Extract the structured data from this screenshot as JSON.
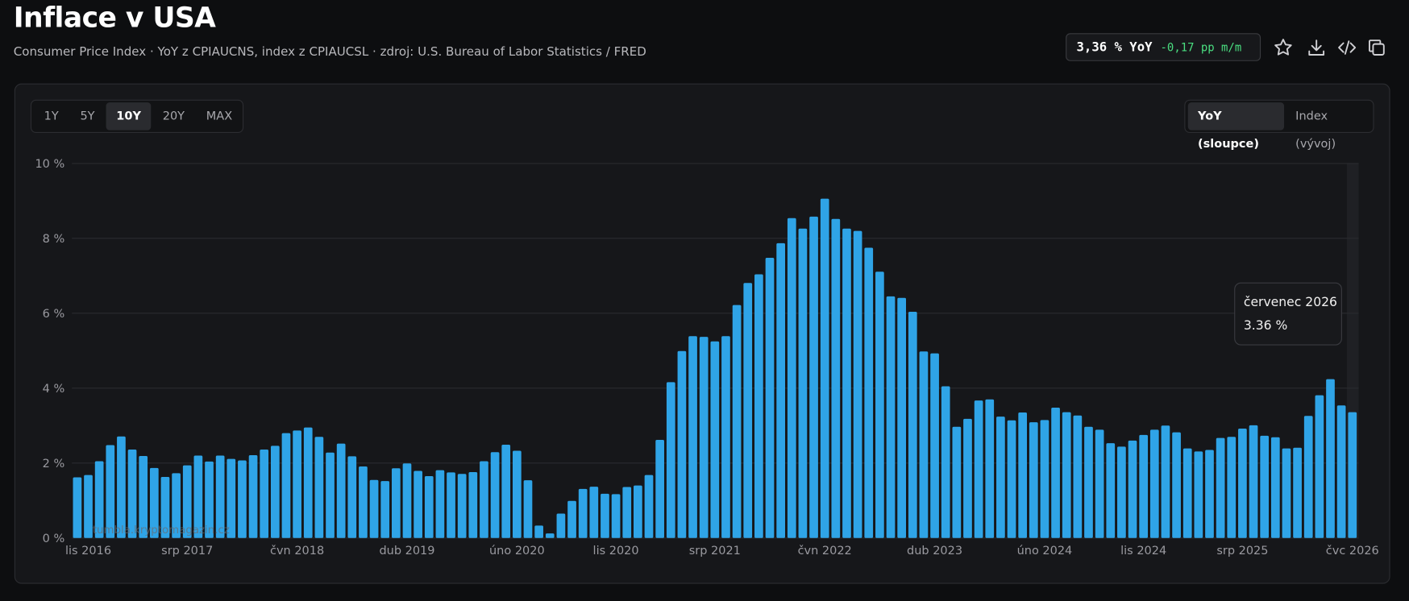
{
  "header": {
    "title": "Inflace v USA",
    "subtitle": "Consumer Price Index · YoY z CPIAUCNS, index z CPIAUCSL · zdroj: U.S. Bureau of Labor Statistics / FRED"
  },
  "badge": {
    "yoy": "3,36 % YoY",
    "mom": "-0,17 pp m/m"
  },
  "range_buttons": [
    "1Y",
    "5Y",
    "10Y",
    "20Y",
    "MAX"
  ],
  "active_range": 2,
  "mode_buttons": [
    "YoY (sloupce)",
    "Index (vývoj)"
  ],
  "active_mode": 0,
  "watermark": "tumbla.kryptomagazin.cz",
  "chart_data": {
    "type": "bar",
    "color": "#2fa4e7",
    "grid": true,
    "categories": [
      null,
      "lis 2016",
      null,
      null,
      null,
      null,
      null,
      null,
      null,
      null,
      "srp 2017",
      null,
      null,
      null,
      null,
      null,
      null,
      null,
      null,
      null,
      "čvn 2018",
      null,
      null,
      null,
      null,
      null,
      null,
      null,
      null,
      null,
      "dub 2019",
      null,
      null,
      null,
      null,
      null,
      null,
      null,
      null,
      null,
      "úno 2020",
      null,
      null,
      null,
      null,
      null,
      null,
      null,
      null,
      "lis 2020",
      null,
      null,
      null,
      null,
      null,
      null,
      null,
      null,
      "srp 2021",
      null,
      null,
      null,
      null,
      null,
      null,
      null,
      null,
      null,
      "čvn 2022",
      null,
      null,
      null,
      null,
      null,
      null,
      null,
      null,
      null,
      "dub 2023",
      null,
      null,
      null,
      null,
      null,
      null,
      null,
      null,
      null,
      "úno 2024",
      null,
      null,
      null,
      null,
      null,
      null,
      null,
      null,
      "lis 2024",
      null,
      null,
      null,
      null,
      null,
      null,
      null,
      null,
      "srp 2025",
      null,
      null,
      null,
      null,
      null,
      null,
      null,
      null,
      null,
      "čvc 2026"
    ],
    "values": [
      1.62,
      1.68,
      2.05,
      2.48,
      2.71,
      2.36,
      2.19,
      1.87,
      1.63,
      1.73,
      1.94,
      2.2,
      2.04,
      2.2,
      2.11,
      2.07,
      2.21,
      2.36,
      2.46,
      2.8,
      2.87,
      2.95,
      2.7,
      2.28,
      2.52,
      2.18,
      1.91,
      1.55,
      1.52,
      1.86,
      1.99,
      1.79,
      1.65,
      1.81,
      1.75,
      1.71,
      1.76,
      2.05,
      2.29,
      2.49,
      2.33,
      1.54,
      0.33,
      0.12,
      0.65,
      0.99,
      1.31,
      1.37,
      1.18,
      1.17,
      1.36,
      1.4,
      1.68,
      2.62,
      4.16,
      4.99,
      5.39,
      5.37,
      5.25,
      5.39,
      6.22,
      6.81,
      7.04,
      7.48,
      7.87,
      8.54,
      8.26,
      8.58,
      9.06,
      8.52,
      8.26,
      8.2,
      7.75,
      7.11,
      6.45,
      6.41,
      6.04,
      4.98,
      4.93,
      4.05,
      2.97,
      3.18,
      3.67,
      3.7,
      3.24,
      3.14,
      3.35,
      3.09,
      3.15,
      3.48,
      3.36,
      3.27,
      2.97,
      2.89,
      2.53,
      2.44,
      2.6,
      2.75,
      2.89,
      3.0,
      2.82,
      2.39,
      2.31,
      2.35,
      2.67,
      2.7,
      2.92,
      3.01,
      2.73,
      2.69,
      2.39,
      2.41,
      3.26,
      3.81,
      4.24,
      3.54,
      3.36
    ],
    "ylim": [
      0,
      10
    ],
    "yticks": [
      {
        "value": 0,
        "label": "0 %"
      },
      {
        "value": 2,
        "label": "2 %"
      },
      {
        "value": 4,
        "label": "4 %"
      },
      {
        "value": 6,
        "label": "6 %"
      },
      {
        "value": 8,
        "label": "8 %"
      },
      {
        "value": 10,
        "label": "10 %"
      }
    ],
    "tooltip": {
      "label": "červenec 2026",
      "text": "3.36 %"
    }
  }
}
